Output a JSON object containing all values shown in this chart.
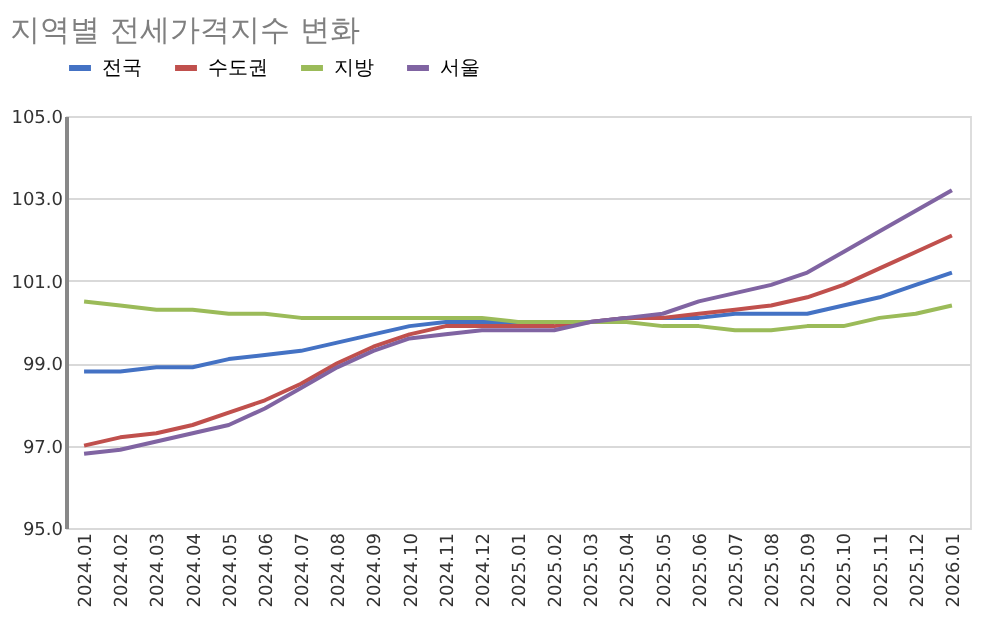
{
  "chart_data": {
    "type": "line",
    "title": "지역별 전세가격지수 변화",
    "categories": [
      "2024.01",
      "2024.02",
      "2024.03",
      "2024.04",
      "2024.05",
      "2024.06",
      "2024.07",
      "2024.08",
      "2024.09",
      "2024.10",
      "2024.11",
      "2024.12",
      "2025.01",
      "2025.02",
      "2025.03",
      "2025.04",
      "2025.05",
      "2025.06",
      "2025.07",
      "2025.08",
      "2025.09",
      "2025.10",
      "2025.11",
      "2025.12",
      "2026.01"
    ],
    "series": [
      {
        "name": "전국",
        "color": "#4472c4",
        "values": [
          98.8,
          98.8,
          98.9,
          98.9,
          99.1,
          99.2,
          99.3,
          99.5,
          99.7,
          99.9,
          100.0,
          100.0,
          100.0,
          100.0,
          100.0,
          100.1,
          100.1,
          100.1,
          100.2,
          100.2,
          100.2,
          100.4,
          100.6,
          100.9,
          101.2
        ]
      },
      {
        "name": "수도권",
        "color": "#c0504d",
        "values": [
          97.0,
          97.2,
          97.3,
          97.5,
          97.8,
          98.1,
          98.5,
          99.0,
          99.4,
          99.7,
          99.9,
          99.9,
          99.9,
          99.9,
          100.0,
          100.1,
          100.1,
          100.2,
          100.3,
          100.4,
          100.6,
          100.9,
          101.3,
          101.7,
          102.1
        ]
      },
      {
        "name": "지방",
        "color": "#9bbb59",
        "values": [
          100.5,
          100.4,
          100.3,
          100.3,
          100.2,
          100.2,
          100.1,
          100.1,
          100.1,
          100.1,
          100.1,
          100.1,
          100.0,
          100.0,
          100.0,
          100.0,
          99.9,
          99.9,
          99.8,
          99.8,
          99.9,
          99.9,
          100.1,
          100.2,
          100.4
        ]
      },
      {
        "name": "서울",
        "color": "#8064a2",
        "values": [
          96.8,
          96.9,
          97.1,
          97.3,
          97.5,
          97.9,
          98.4,
          98.9,
          99.3,
          99.6,
          99.7,
          99.8,
          99.8,
          99.8,
          100.0,
          100.1,
          100.2,
          100.5,
          100.7,
          100.9,
          101.2,
          101.7,
          102.2,
          102.7,
          103.2
        ]
      }
    ],
    "ylim": [
      95,
      105
    ],
    "yticks": [
      {
        "value": 95,
        "label": "95.0"
      },
      {
        "value": 97,
        "label": "97.0"
      },
      {
        "value": 99,
        "label": "99.0"
      },
      {
        "value": 101,
        "label": "101.0"
      },
      {
        "value": 103,
        "label": "103.0"
      },
      {
        "value": 105,
        "label": "105.0"
      }
    ],
    "grid": "y",
    "legend": "top",
    "marker": "none",
    "line_style": "solid"
  }
}
